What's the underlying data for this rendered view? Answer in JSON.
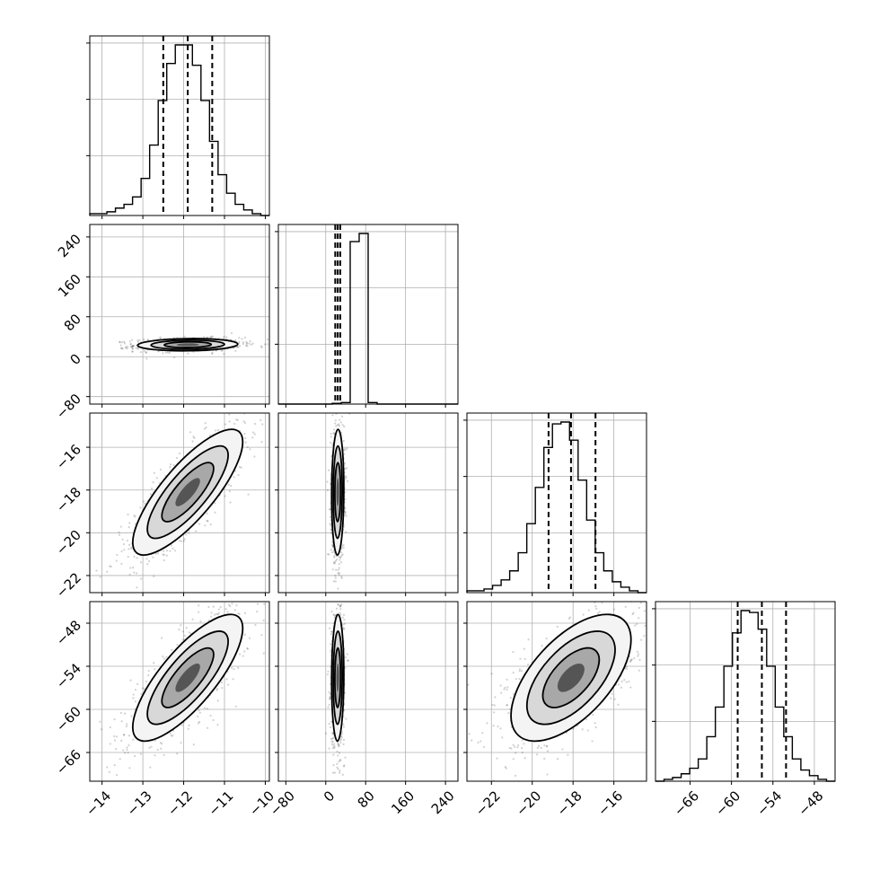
{
  "chart_data": {
    "type": "corner",
    "parameters": [
      {
        "xlim": [
          -14.3,
          -9.9
        ],
        "ticks": [
          -14,
          -13,
          -12,
          -11,
          -10
        ],
        "tick_labels": [
          "−14",
          "−13",
          "−12",
          "−11",
          "−10"
        ],
        "quantiles": [
          -12.5,
          -11.9,
          -11.3
        ],
        "hist": [
          1,
          1,
          2,
          4,
          6,
          10,
          20,
          38,
          62,
          82,
          92,
          92,
          81,
          62,
          40,
          22,
          12,
          6,
          3,
          1,
          0
        ]
      },
      {
        "xlim": [
          -95,
          265
        ],
        "ticks": [
          -80,
          0,
          80,
          160,
          240
        ],
        "tick_labels": [
          "−80",
          "0",
          "80",
          "160",
          "240"
        ],
        "quantiles": [
          19,
          24,
          29
        ],
        "hist": [
          0,
          0,
          0,
          0,
          0,
          0,
          1,
          2,
          220,
          231,
          2,
          0,
          0,
          0,
          0,
          0,
          0,
          0,
          0,
          0
        ]
      },
      {
        "xlim": [
          -23.2,
          -14.4
        ],
        "ticks": [
          -22,
          -20,
          -18,
          -16
        ],
        "tick_labels": [
          "−22",
          "−20",
          "−18",
          "−16"
        ],
        "quantiles": [
          -19.2,
          -18.1,
          -16.9
        ],
        "hist": [
          1,
          1,
          2,
          4,
          7,
          12,
          22,
          38,
          58,
          80,
          93,
          94,
          84,
          62,
          40,
          22,
          12,
          6,
          3,
          1,
          0
        ]
      },
      {
        "xlim": [
          -71,
          -45
        ],
        "ticks": [
          -66,
          -60,
          -54,
          -48
        ],
        "tick_labels": [
          "−66",
          "−60",
          "−54",
          "−48"
        ],
        "quantiles": [
          -59.1,
          -55.6,
          -52.1
        ],
        "hist": [
          0,
          1,
          2,
          4,
          7,
          12,
          24,
          40,
          62,
          80,
          92,
          91,
          82,
          62,
          40,
          24,
          12,
          6,
          3,
          1,
          0
        ]
      }
    ],
    "row_axes": [
      null,
      {
        "ylim": [
          -95,
          265
        ],
        "ticks": [
          -80,
          0,
          80,
          160,
          240
        ],
        "tick_labels": [
          "−80",
          "0",
          "80",
          "160",
          "240"
        ]
      },
      {
        "ylim": [
          -22.8,
          -14.4
        ],
        "ticks": [
          -22,
          -20,
          -18,
          -16
        ],
        "tick_labels": [
          "−22",
          "−20",
          "−18",
          "−16"
        ]
      },
      {
        "ylim": [
          -70,
          -45
        ],
        "ticks": [
          -66,
          -60,
          -54,
          -48
        ],
        "tick_labels": [
          "−66",
          "−60",
          "−54",
          "−48"
        ]
      }
    ],
    "pairs": [
      {
        "row": 1,
        "col": 0,
        "mean": [
          -11.9,
          24
        ],
        "sd": [
          0.5,
          5
        ],
        "rho": 0.1
      },
      {
        "row": 2,
        "col": 0,
        "mean": [
          -11.9,
          -18.1
        ],
        "sd": [
          0.55,
          1.2
        ],
        "rho": 0.8
      },
      {
        "row": 2,
        "col": 1,
        "mean": [
          24,
          -18.1
        ],
        "sd": [
          5,
          1.2
        ],
        "rho": 0.05
      },
      {
        "row": 3,
        "col": 0,
        "mean": [
          -11.9,
          -55.6
        ],
        "sd": [
          0.55,
          3.6
        ],
        "rho": 0.78
      },
      {
        "row": 3,
        "col": 1,
        "mean": [
          24,
          -55.6
        ],
        "sd": [
          5,
          3.6
        ],
        "rho": 0.05
      },
      {
        "row": 3,
        "col": 2,
        "mean": [
          -18.1,
          -55.6
        ],
        "sd": [
          1.2,
          3.6
        ],
        "rho": 0.6
      }
    ],
    "grid": true,
    "title": "",
    "xlabel": "",
    "ylabel": ""
  }
}
